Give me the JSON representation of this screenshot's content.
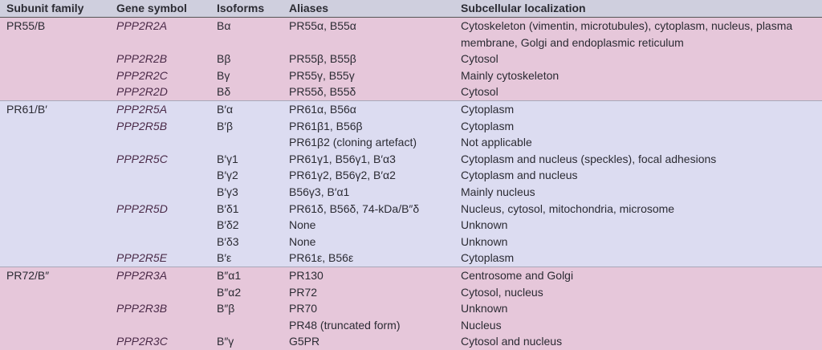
{
  "table": {
    "header": [
      "Subunit family",
      "Gene symbol",
      "Isoforms",
      "Aliases",
      "Subcellular localization"
    ],
    "groups": [
      {
        "family": "PR55/B",
        "rows": [
          [
            "PPP2R2A",
            "Bα",
            "PR55α, B55α",
            "Cytoskeleton (vimentin, microtubules), cytoplasm, nucleus, plasma membrane, Golgi and endoplasmic reticulum"
          ],
          [
            "PPP2R2B",
            "Bβ",
            "PR55β, B55β",
            "Cytosol"
          ],
          [
            "PPP2R2C",
            "Bγ",
            "PR55γ, B55γ",
            "Mainly cytoskeleton"
          ],
          [
            "PPP2R2D",
            "Bδ",
            "PR55δ, B55δ",
            "Cytosol"
          ]
        ]
      },
      {
        "family": "PR61/B′",
        "rows": [
          [
            "PPP2R5A",
            "B′α",
            "PR61α, B56α",
            "Cytoplasm"
          ],
          [
            "PPP2R5B",
            "B′β",
            "PR61β1, B56β",
            "Cytoplasm"
          ],
          [
            null,
            null,
            "PR61β2 (cloning artefact)",
            "Not applicable"
          ],
          [
            "PPP2R5C",
            "B′γ1",
            "PR61γ1, B56γ1, B′α3",
            "Cytoplasm and nucleus (speckles), focal adhesions"
          ],
          [
            null,
            "B′γ2",
            "PR61γ2, B56γ2, B′α2",
            "Cytoplasm and nucleus"
          ],
          [
            null,
            "B′γ3",
            "B56γ3, B′α1",
            "Mainly nucleus"
          ],
          [
            "PPP2R5D",
            "B′δ1",
            "PR61δ, B56δ, 74-kDa/B″δ",
            "Nucleus, cytosol, mitochondria, microsome"
          ],
          [
            null,
            "B′δ2",
            "None",
            "Unknown"
          ],
          [
            null,
            "B′δ3",
            "None",
            "Unknown"
          ],
          [
            "PPP2R5E",
            "B′ε",
            "PR61ε, B56ε",
            "Cytoplasm"
          ]
        ]
      },
      {
        "family": "PR72/B″",
        "rows": [
          [
            "PPP2R3A",
            "B″α1",
            "PR130",
            "Centrosome and Golgi"
          ],
          [
            null,
            "B″α2",
            "PR72",
            "Cytosol, nucleus"
          ],
          [
            "PPP2R3B",
            "B″β",
            "PR70",
            "Unknown"
          ],
          [
            null,
            null,
            "PR48 (truncated form)",
            "Nucleus"
          ],
          [
            "PPP2R3C",
            "B″γ",
            "G5PR",
            "Cytosol and nucleus"
          ]
        ]
      }
    ]
  }
}
